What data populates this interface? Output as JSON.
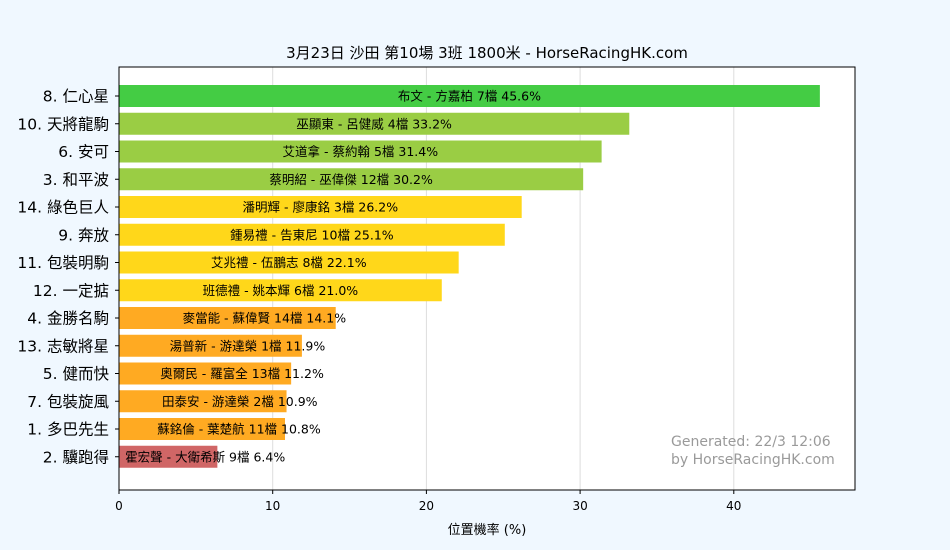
{
  "chart_data": {
    "type": "bar",
    "orientation": "horizontal",
    "title": "3月23日  沙田  第10場  3班  1800米 - HorseRacingHK.com",
    "xlabel": "位置機率 (%)",
    "xlim": [
      0,
      48
    ],
    "xticks": [
      0,
      10,
      20,
      30,
      40
    ],
    "grid": "vertical",
    "colors": {
      "green": "#44cc44",
      "olive": "#9acd44",
      "yellow": "#ffd71a",
      "orange": "#ffaa22",
      "red": "#d06666",
      "grid": "#dddddd"
    },
    "bars": [
      {
        "horse": "8. 仁心星",
        "label": "布文 - 方嘉柏 7檔  45.6%",
        "value": 45.6,
        "color": "green"
      },
      {
        "horse": "10. 天將龍駒",
        "label": "巫顯東 - 呂健威 4檔  33.2%",
        "value": 33.2,
        "color": "olive"
      },
      {
        "horse": "6. 安可",
        "label": "艾道拿 - 蔡約翰 5檔  31.4%",
        "value": 31.4,
        "color": "olive"
      },
      {
        "horse": "3. 和平波",
        "label": "蔡明紹 - 巫偉傑 12檔  30.2%",
        "value": 30.2,
        "color": "olive"
      },
      {
        "horse": "14. 綠色巨人",
        "label": "潘明輝 - 廖康銘 3檔  26.2%",
        "value": 26.2,
        "color": "yellow"
      },
      {
        "horse": "9. 奔放",
        "label": "鍾易禮 - 告東尼 10檔  25.1%",
        "value": 25.1,
        "color": "yellow"
      },
      {
        "horse": "11. 包裝明駒",
        "label": "艾兆禮 - 伍鵬志 8檔  22.1%",
        "value": 22.1,
        "color": "yellow"
      },
      {
        "horse": "12. 一定掂",
        "label": "班德禮 - 姚本輝 6檔  21.0%",
        "value": 21.0,
        "color": "yellow"
      },
      {
        "horse": "4. 金勝名駒",
        "label": "麥當能 - 蘇偉賢 14檔  14.1%",
        "value": 14.1,
        "color": "orange"
      },
      {
        "horse": "13. 志敏將星",
        "label": "湯普新 - 游達榮 1檔  11.9%",
        "value": 11.9,
        "color": "orange"
      },
      {
        "horse": "5. 健而快",
        "label": "奧爾民 - 羅富全 13檔  11.2%",
        "value": 11.2,
        "color": "orange"
      },
      {
        "horse": "7. 包裝旋風",
        "label": "田泰安 - 游達榮 2檔  10.9%",
        "value": 10.9,
        "color": "orange"
      },
      {
        "horse": "1. 多巴先生",
        "label": "蘇銘倫 - 葉楚航 11檔  10.8%",
        "value": 10.8,
        "color": "orange"
      },
      {
        "horse": "2. 驥跑得",
        "label": "霍宏聲 - 大衛希斯 9檔  6.4%",
        "value": 6.4,
        "color": "red"
      }
    ],
    "watermark": [
      "Generated: 22/3 12:06",
      "by HorseRacingHK.com"
    ]
  }
}
